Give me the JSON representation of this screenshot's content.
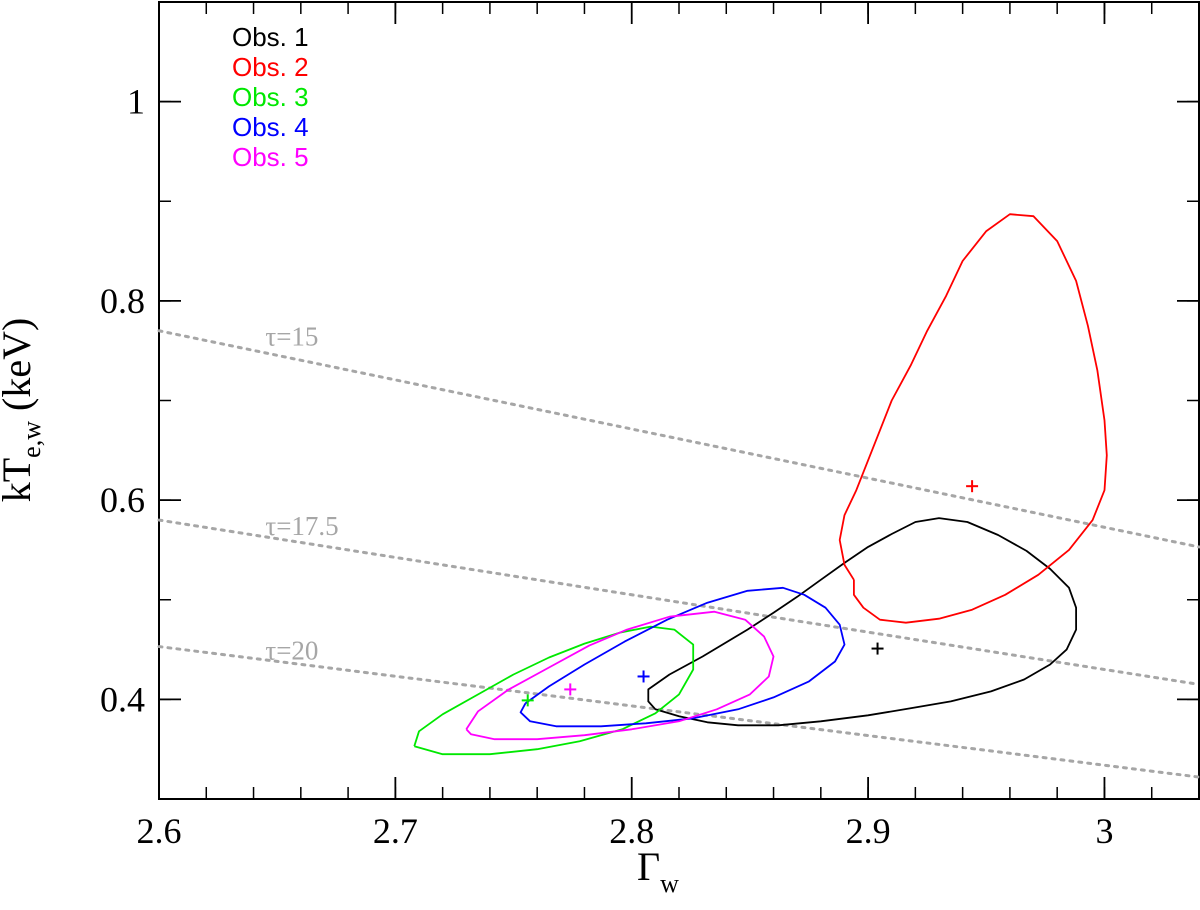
{
  "chart_data": {
    "type": "scatter",
    "title": "",
    "xlabel": "Γ",
    "xlabel_sub": "w",
    "ylabel": "kT",
    "ylabel_sub": "e,w",
    "ylabel_unit": " (keV)",
    "xlim": [
      2.6,
      3.04
    ],
    "ylim": [
      0.3,
      1.1
    ],
    "x_major_ticks": [
      2.6,
      2.7,
      2.8,
      2.9,
      3.0
    ],
    "x_tick_labels": [
      "2.6",
      "2.7",
      "2.8",
      "2.9",
      "3"
    ],
    "x_minor_step": 0.02,
    "y_major_ticks": [
      0.4,
      0.6,
      0.8,
      1.0
    ],
    "y_tick_labels": [
      "0.4",
      "0.6",
      "0.8",
      "1"
    ],
    "y_minor_step": 0.1,
    "grid": false,
    "legend_position": "top-left",
    "series": [
      {
        "name": "Obs. 1",
        "color": "#000000",
        "best_fit": [
          2.904,
          0.451
        ],
        "contour": [
          [
            2.849,
            0.47
          ],
          [
            2.86,
            0.487
          ],
          [
            2.87,
            0.503
          ],
          [
            2.88,
            0.52
          ],
          [
            2.89,
            0.537
          ],
          [
            2.9,
            0.553
          ],
          [
            2.91,
            0.566
          ],
          [
            2.92,
            0.578
          ],
          [
            2.93,
            0.582
          ],
          [
            2.942,
            0.578
          ],
          [
            2.955,
            0.565
          ],
          [
            2.967,
            0.549
          ],
          [
            2.977,
            0.531
          ],
          [
            2.985,
            0.512
          ],
          [
            2.988,
            0.492
          ],
          [
            2.988,
            0.47
          ],
          [
            2.984,
            0.45
          ],
          [
            2.977,
            0.435
          ],
          [
            2.966,
            0.42
          ],
          [
            2.952,
            0.408
          ],
          [
            2.935,
            0.398
          ],
          [
            2.918,
            0.391
          ],
          [
            2.9,
            0.384
          ],
          [
            2.88,
            0.378
          ],
          [
            2.862,
            0.374
          ],
          [
            2.845,
            0.374
          ],
          [
            2.832,
            0.377
          ],
          [
            2.82,
            0.383
          ],
          [
            2.81,
            0.39
          ],
          [
            2.807,
            0.398
          ],
          [
            2.807,
            0.41
          ],
          [
            2.816,
            0.425
          ],
          [
            2.83,
            0.443
          ],
          [
            2.849,
            0.47
          ]
        ]
      },
      {
        "name": "Obs. 2",
        "color": "#ff0000",
        "best_fit": [
          2.944,
          0.614
        ],
        "contour": [
          [
            2.894,
            0.52
          ],
          [
            2.89,
            0.535
          ],
          [
            2.888,
            0.56
          ],
          [
            2.89,
            0.585
          ],
          [
            2.895,
            0.61
          ],
          [
            2.9,
            0.64
          ],
          [
            2.905,
            0.67
          ],
          [
            2.91,
            0.7
          ],
          [
            2.918,
            0.735
          ],
          [
            2.925,
            0.77
          ],
          [
            2.933,
            0.805
          ],
          [
            2.94,
            0.84
          ],
          [
            2.95,
            0.87
          ],
          [
            2.96,
            0.887
          ],
          [
            2.97,
            0.885
          ],
          [
            2.98,
            0.86
          ],
          [
            2.988,
            0.82
          ],
          [
            2.993,
            0.775
          ],
          [
            2.997,
            0.73
          ],
          [
            3.0,
            0.68
          ],
          [
            3.001,
            0.645
          ],
          [
            3.0,
            0.61
          ],
          [
            2.995,
            0.58
          ],
          [
            2.985,
            0.55
          ],
          [
            2.972,
            0.525
          ],
          [
            2.958,
            0.505
          ],
          [
            2.944,
            0.49
          ],
          [
            2.93,
            0.481
          ],
          [
            2.916,
            0.477
          ],
          [
            2.905,
            0.48
          ],
          [
            2.898,
            0.492
          ],
          [
            2.894,
            0.505
          ],
          [
            2.894,
            0.52
          ]
        ]
      },
      {
        "name": "Obs. 3",
        "color": "#00e800",
        "best_fit": [
          2.756,
          0.399
        ],
        "contour": [
          [
            2.708,
            0.353
          ],
          [
            2.71,
            0.368
          ],
          [
            2.72,
            0.385
          ],
          [
            2.735,
            0.405
          ],
          [
            2.75,
            0.425
          ],
          [
            2.765,
            0.442
          ],
          [
            2.78,
            0.456
          ],
          [
            2.795,
            0.467
          ],
          [
            2.808,
            0.473
          ],
          [
            2.818,
            0.47
          ],
          [
            2.826,
            0.455
          ],
          [
            2.826,
            0.43
          ],
          [
            2.82,
            0.405
          ],
          [
            2.81,
            0.386
          ],
          [
            2.796,
            0.37
          ],
          [
            2.778,
            0.358
          ],
          [
            2.76,
            0.35
          ],
          [
            2.74,
            0.345
          ],
          [
            2.72,
            0.345
          ],
          [
            2.708,
            0.353
          ]
        ]
      },
      {
        "name": "Obs. 4",
        "color": "#0000ff",
        "best_fit": [
          2.805,
          0.423
        ],
        "contour": [
          [
            2.755,
            0.396
          ],
          [
            2.765,
            0.413
          ],
          [
            2.78,
            0.435
          ],
          [
            2.797,
            0.458
          ],
          [
            2.815,
            0.48
          ],
          [
            2.832,
            0.497
          ],
          [
            2.849,
            0.509
          ],
          [
            2.864,
            0.512
          ],
          [
            2.873,
            0.505
          ],
          [
            2.882,
            0.492
          ],
          [
            2.888,
            0.475
          ],
          [
            2.89,
            0.455
          ],
          [
            2.886,
            0.438
          ],
          [
            2.875,
            0.418
          ],
          [
            2.86,
            0.402
          ],
          [
            2.845,
            0.39
          ],
          [
            2.826,
            0.381
          ],
          [
            2.806,
            0.376
          ],
          [
            2.787,
            0.373
          ],
          [
            2.768,
            0.373
          ],
          [
            2.757,
            0.378
          ],
          [
            2.753,
            0.387
          ],
          [
            2.755,
            0.396
          ]
        ]
      },
      {
        "name": "Obs. 5",
        "color": "#ff00ff",
        "best_fit": [
          2.774,
          0.41
        ],
        "contour": [
          [
            2.73,
            0.37
          ],
          [
            2.735,
            0.388
          ],
          [
            2.748,
            0.41
          ],
          [
            2.765,
            0.432
          ],
          [
            2.782,
            0.454
          ],
          [
            2.798,
            0.47
          ],
          [
            2.816,
            0.483
          ],
          [
            2.835,
            0.488
          ],
          [
            2.848,
            0.48
          ],
          [
            2.856,
            0.463
          ],
          [
            2.86,
            0.443
          ],
          [
            2.858,
            0.423
          ],
          [
            2.85,
            0.405
          ],
          [
            2.836,
            0.39
          ],
          [
            2.82,
            0.378
          ],
          [
            2.8,
            0.37
          ],
          [
            2.78,
            0.364
          ],
          [
            2.76,
            0.36
          ],
          [
            2.742,
            0.36
          ],
          [
            2.732,
            0.365
          ],
          [
            2.73,
            0.37
          ]
        ]
      }
    ],
    "tau_lines": [
      {
        "label": "τ=15",
        "x": [
          2.6,
          3.04
        ],
        "y": [
          0.77,
          0.553
        ],
        "label_at": [
          2.645,
          0.755
        ]
      },
      {
        "label": "τ=17.5",
        "x": [
          2.6,
          3.04
        ],
        "y": [
          0.58,
          0.415
        ],
        "label_at": [
          2.645,
          0.565
        ]
      },
      {
        "label": "τ=20",
        "x": [
          2.6,
          3.04
        ],
        "y": [
          0.453,
          0.322
        ],
        "label_at": [
          2.645,
          0.44
        ]
      }
    ],
    "tau_color": "#a6a6a6"
  }
}
